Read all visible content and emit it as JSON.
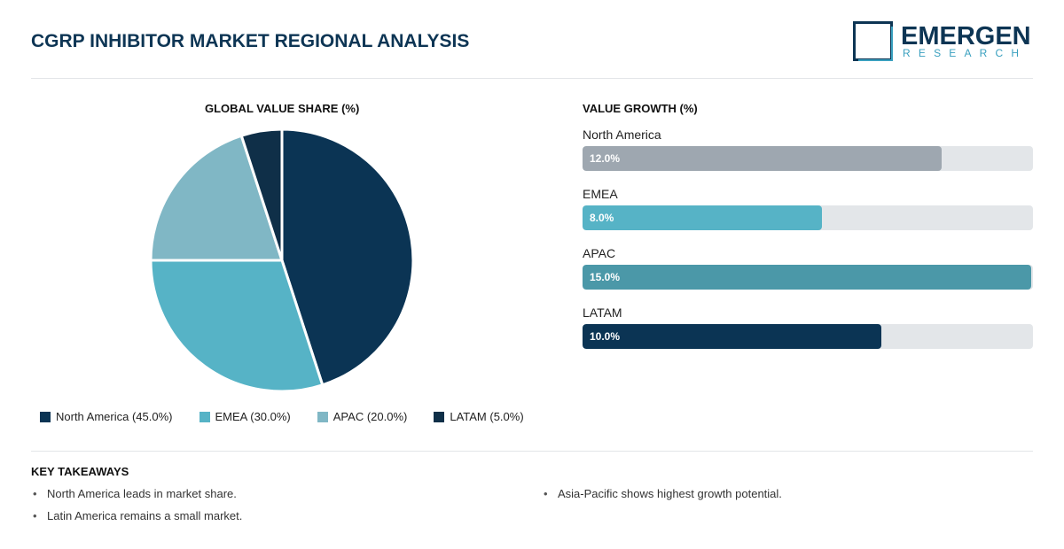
{
  "header": {
    "title": "CGRP INHIBITOR MARKET REGIONAL ANALYSIS"
  },
  "logo": {
    "main": "EMERGEN",
    "sub": "RESEARCH",
    "icon": "logo-square-icon"
  },
  "pie_panel": {
    "title": "GLOBAL VALUE SHARE (%)"
  },
  "bar_panel": {
    "title": "VALUE GROWTH (%)"
  },
  "legend": [
    {
      "label": "North America (45.0%)",
      "color": "#0b3454"
    },
    {
      "label": "EMEA (30.0%)",
      "color": "#56b3c6"
    },
    {
      "label": "APAC (20.0%)",
      "color": "#80b7c5"
    },
    {
      "label": "LATAM (5.0%)",
      "color": "#0f2f48"
    }
  ],
  "chart_data": [
    {
      "type": "pie",
      "title": "GLOBAL VALUE SHARE (%)",
      "categories": [
        "North America",
        "EMEA",
        "APAC",
        "LATAM"
      ],
      "values": [
        45.0,
        30.0,
        20.0,
        5.0
      ],
      "colors": [
        "#0b3454",
        "#56b3c6",
        "#80b7c5",
        "#0f2f48"
      ],
      "legend_position": "bottom"
    },
    {
      "type": "bar",
      "orientation": "horizontal",
      "title": "VALUE GROWTH (%)",
      "categories": [
        "North America",
        "EMEA",
        "APAC",
        "LATAM"
      ],
      "values": [
        12.0,
        8.0,
        15.0,
        10.0
      ],
      "value_labels": [
        "12.0%",
        "8.0%",
        "15.0%",
        "10.0%"
      ],
      "colors": [
        "#9ea7b0",
        "#56b3c6",
        "#4b98a8",
        "#0b3454"
      ],
      "xlim": [
        0,
        15.0
      ]
    }
  ],
  "takeaways": {
    "title": "KEY TAKEAWAYS",
    "left": [
      "North America leads in market share.",
      "Latin America remains a small market."
    ],
    "right": [
      "Asia-Pacific shows highest growth potential."
    ]
  }
}
